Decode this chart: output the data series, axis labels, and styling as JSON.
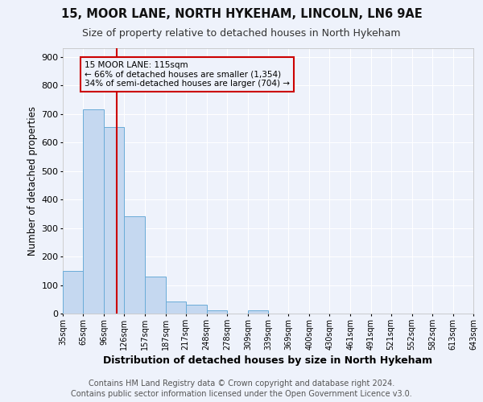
{
  "title1": "15, MOOR LANE, NORTH HYKEHAM, LINCOLN, LN6 9AE",
  "title2": "Size of property relative to detached houses in North Hykeham",
  "xlabel": "Distribution of detached houses by size in North Hykeham",
  "ylabel": "Number of detached properties",
  "footer1": "Contains HM Land Registry data © Crown copyright and database right 2024.",
  "footer2": "Contains public sector information licensed under the Open Government Licence v3.0.",
  "bins": [
    35,
    65,
    96,
    126,
    157,
    187,
    217,
    248,
    278,
    309,
    339,
    369,
    400,
    430,
    461,
    491,
    521,
    552,
    582,
    613,
    643
  ],
  "bin_labels": [
    "35sqm",
    "65sqm",
    "96sqm",
    "126sqm",
    "157sqm",
    "187sqm",
    "217sqm",
    "248sqm",
    "278sqm",
    "309sqm",
    "339sqm",
    "369sqm",
    "400sqm",
    "430sqm",
    "461sqm",
    "491sqm",
    "521sqm",
    "552sqm",
    "582sqm",
    "613sqm",
    "643sqm"
  ],
  "values": [
    150,
    715,
    655,
    340,
    130,
    43,
    30,
    12,
    0,
    10,
    0,
    0,
    0,
    0,
    0,
    0,
    0,
    0,
    0,
    0
  ],
  "bar_color": "#c5d8f0",
  "bar_edge_color": "#6aacd8",
  "property_sqm": 115,
  "vline_color": "#cc0000",
  "ann_line1": "15 MOOR LANE: 115sqm",
  "ann_line2": "← 66% of detached houses are smaller (1,354)",
  "ann_line3": "34% of semi-detached houses are larger (704) →",
  "annotation_box_color": "#cc0000",
  "ylim": [
    0,
    930
  ],
  "yticks": [
    0,
    100,
    200,
    300,
    400,
    500,
    600,
    700,
    800,
    900
  ],
  "background_color": "#eef2fb",
  "grid_color": "#ffffff",
  "title1_fontsize": 10.5,
  "title2_fontsize": 9,
  "xlabel_fontsize": 9,
  "ylabel_fontsize": 8.5,
  "tick_fontsize": 7,
  "footer_fontsize": 7
}
